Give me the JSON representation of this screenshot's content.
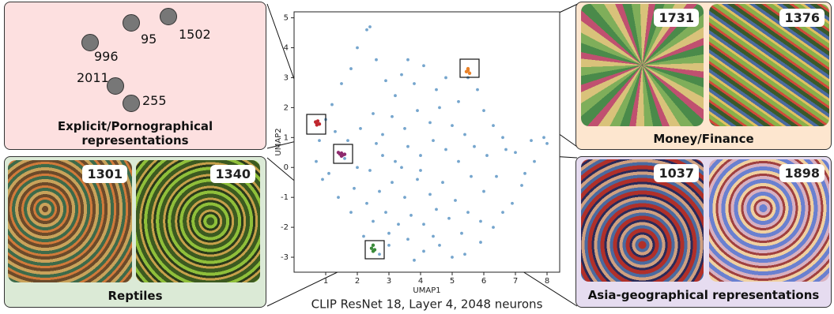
{
  "chart_data": {
    "type": "scatter",
    "title": "CLIP ResNet 18, Layer 4, 2048 neurons",
    "x_label": "UMAP1",
    "y_label": "UMAP2",
    "xlim": [
      0,
      8.4
    ],
    "ylim": [
      -3.5,
      5.2
    ],
    "xticks": [
      1,
      2,
      3,
      4,
      5,
      6,
      7,
      8
    ],
    "yticks": [
      -3,
      -2,
      -1,
      0,
      1,
      2,
      3,
      4,
      5
    ],
    "series": [
      {
        "color": "#3a7fb8",
        "x": [
          1.2,
          1.5,
          1.8,
          2.0,
          2.3,
          2.4,
          2.6,
          2.9,
          3.2,
          3.4,
          3.8,
          4.1,
          4.5,
          4.8,
          5.2,
          5.8,
          6.0,
          6.3,
          6.6,
          7.0,
          7.5,
          7.9,
          8.0,
          7.6,
          7.2,
          6.9,
          6.6,
          6.3,
          5.9,
          5.4,
          5.0,
          4.6,
          4.1,
          3.6,
          3.0,
          2.7,
          2.2,
          1.8,
          1.4,
          0.9,
          0.7,
          0.8,
          1.0,
          1.3,
          1.7,
          2.1,
          2.5,
          2.8,
          3.1,
          3.5,
          3.9,
          4.3,
          4.6,
          5.0,
          5.4,
          5.7,
          6.1,
          6.4,
          6.0,
          5.6,
          5.2,
          4.8,
          4.4,
          4.0,
          3.6,
          3.2,
          2.8,
          2.4,
          2.0,
          1.9,
          2.3,
          2.7,
          3.1,
          3.5,
          3.9,
          4.3,
          4.7,
          5.1,
          5.5,
          5.9,
          5.3,
          4.9,
          4.5,
          4.1,
          3.7,
          3.3,
          2.9,
          2.5,
          3.0,
          3.8,
          4.4,
          4.0,
          3.4,
          2.6,
          1.6,
          1.1,
          6.7,
          7.3,
          5.5,
          3.6
        ],
        "y": [
          2.1,
          2.8,
          3.3,
          4.0,
          4.6,
          4.7,
          3.6,
          2.9,
          2.4,
          3.1,
          2.8,
          3.4,
          2.6,
          3.0,
          2.2,
          2.6,
          1.9,
          1.4,
          1.0,
          0.5,
          0.9,
          1.0,
          0.8,
          0.2,
          -0.6,
          -1.2,
          -1.5,
          -2.0,
          -2.5,
          -2.9,
          -3.0,
          -2.6,
          -2.8,
          -2.4,
          -2.2,
          -2.9,
          -2.3,
          -1.5,
          -1.0,
          -0.4,
          0.2,
          0.9,
          1.6,
          1.2,
          0.9,
          1.3,
          1.8,
          1.1,
          1.7,
          1.3,
          1.9,
          1.5,
          2.0,
          1.4,
          1.1,
          0.7,
          0.4,
          -0.3,
          -0.8,
          -0.3,
          0.2,
          0.6,
          0.9,
          0.4,
          0.7,
          0.2,
          0.4,
          -0.1,
          0.0,
          -0.7,
          -1.2,
          -0.8,
          -0.5,
          -1.0,
          -0.4,
          -0.9,
          -0.5,
          -1.1,
          -1.5,
          -1.8,
          -2.2,
          -1.7,
          -1.4,
          -1.9,
          -1.6,
          -1.9,
          -1.5,
          -1.8,
          -2.6,
          -3.1,
          -2.3,
          -0.1,
          0.0,
          0.8,
          0.3,
          -0.2,
          0.6,
          -0.2,
          3.0,
          3.6
        ]
      },
      {
        "color": "#c0262d",
        "x": [
          0.7,
          0.75,
          0.8,
          0.72,
          0.68
        ],
        "y": [
          1.5,
          1.55,
          1.45,
          1.42,
          1.52
        ]
      },
      {
        "color": "#e8822a",
        "x": [
          5.45,
          5.5,
          5.55,
          5.5
        ],
        "y": [
          3.2,
          3.25,
          3.15,
          3.3
        ]
      },
      {
        "color": "#8e2b6e",
        "x": [
          1.4,
          1.45,
          1.5,
          1.55,
          1.6,
          1.5
        ],
        "y": [
          0.5,
          0.45,
          0.48,
          0.42,
          0.44,
          0.38
        ]
      },
      {
        "color": "#3a8a3a",
        "x": [
          2.45,
          2.5,
          2.55,
          2.5
        ],
        "y": [
          -2.7,
          -2.6,
          -2.75,
          -2.8
        ]
      }
    ]
  },
  "panels": [
    {
      "title": "Explicit/Pornographical representations",
      "items": [
        "95",
        "1502",
        "996",
        "2011",
        "255"
      ]
    },
    {
      "title": "Reptiles",
      "items": [
        "1301",
        "1340"
      ]
    },
    {
      "title": "Money/Finance",
      "items": [
        "1731",
        "1376"
      ]
    },
    {
      "title": "Asia-geographical representations",
      "items": [
        "1037",
        "1898"
      ]
    }
  ]
}
